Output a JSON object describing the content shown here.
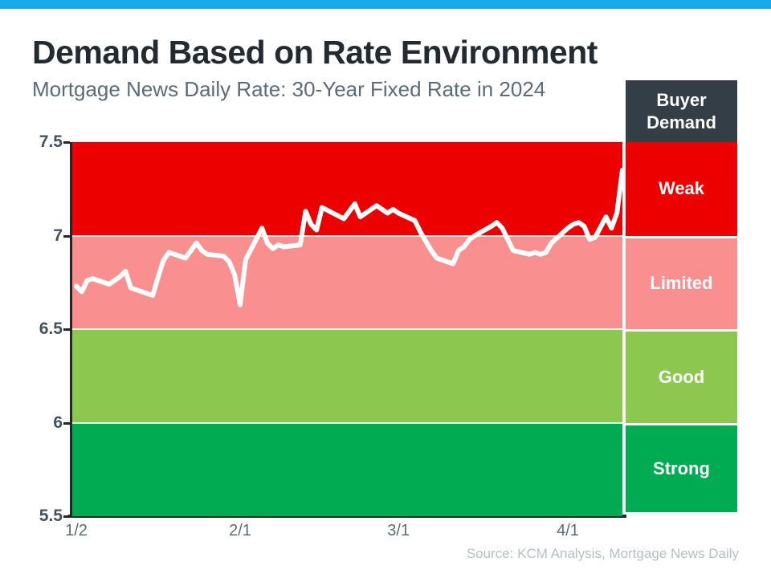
{
  "topbar": {
    "color": "#17a9e8"
  },
  "header": {
    "title": "Demand Based on Rate Environment",
    "subtitle": "Mortgage News Daily Rate: 30-Year Fixed Rate in 2024"
  },
  "legend": {
    "header": "Buyer Demand"
  },
  "footer": {
    "source_note": "Source: KCM Analysis, Mortgage News Daily"
  },
  "chart_data": {
    "type": "line",
    "title": "Demand Based on Rate Environment",
    "subtitle": "Mortgage News Daily Rate: 30-Year Fixed Rate in 2024",
    "xlabel": "",
    "ylabel": "",
    "ylim": [
      5.5,
      7.5
    ],
    "x_unit": "day-of-year-2024",
    "x_range_days": [
      2,
      102
    ],
    "grid": "white lines at band boundaries (7.0, 6.5, 6.0)",
    "legend_position": "right-column",
    "y_ticks": [
      {
        "label": "7.5",
        "value": 7.5
      },
      {
        "label": "7",
        "value": 7.0
      },
      {
        "label": "6.5",
        "value": 6.5
      },
      {
        "label": "6",
        "value": 6.0
      },
      {
        "label": "5.5",
        "value": 5.5
      }
    ],
    "x_ticks": [
      {
        "label": "1/2",
        "day": 2
      },
      {
        "label": "2/1",
        "day": 32
      },
      {
        "label": "3/1",
        "day": 61
      },
      {
        "label": "4/1",
        "day": 92
      }
    ],
    "bands": [
      {
        "label": "Weak",
        "min": 7.0,
        "max": 7.5,
        "color": "#ed0000"
      },
      {
        "label": "Limited",
        "min": 6.5,
        "max": 7.0,
        "color": "#f98f8e"
      },
      {
        "label": "Good",
        "min": 6.0,
        "max": 6.5,
        "color": "#8cc750"
      },
      {
        "label": "Strong",
        "min": 5.5,
        "max": 6.0,
        "color": "#00ab51"
      }
    ],
    "series": [
      {
        "name": "30-Year Fixed Rate",
        "color": "#ffffff",
        "points": [
          [
            2,
            6.73
          ],
          [
            3,
            6.7
          ],
          [
            4,
            6.76
          ],
          [
            5,
            6.77
          ],
          [
            8,
            6.74
          ],
          [
            9,
            6.76
          ],
          [
            10,
            6.78
          ],
          [
            11,
            6.81
          ],
          [
            12,
            6.72
          ],
          [
            16,
            6.68
          ],
          [
            17,
            6.78
          ],
          [
            18,
            6.87
          ],
          [
            19,
            6.91
          ],
          [
            22,
            6.88
          ],
          [
            23,
            6.92
          ],
          [
            24,
            6.96
          ],
          [
            25,
            6.92
          ],
          [
            26,
            6.9
          ],
          [
            29,
            6.89
          ],
          [
            30,
            6.86
          ],
          [
            31,
            6.79
          ],
          [
            32,
            6.63
          ],
          [
            33,
            6.87
          ],
          [
            36,
            7.04
          ],
          [
            37,
            6.96
          ],
          [
            38,
            6.93
          ],
          [
            39,
            6.95
          ],
          [
            40,
            6.94
          ],
          [
            43,
            6.95
          ],
          [
            44,
            7.13
          ],
          [
            45,
            7.06
          ],
          [
            46,
            7.03
          ],
          [
            47,
            7.15
          ],
          [
            51,
            7.09
          ],
          [
            52,
            7.13
          ],
          [
            53,
            7.17
          ],
          [
            54,
            7.1
          ],
          [
            57,
            7.16
          ],
          [
            58,
            7.14
          ],
          [
            59,
            7.12
          ],
          [
            60,
            7.14
          ],
          [
            61,
            7.12
          ],
          [
            64,
            7.08
          ],
          [
            65,
            7.02
          ],
          [
            66,
            6.97
          ],
          [
            67,
            6.92
          ],
          [
            68,
            6.88
          ],
          [
            71,
            6.85
          ],
          [
            72,
            6.92
          ],
          [
            73,
            6.94
          ],
          [
            74,
            6.98
          ],
          [
            75,
            7.0
          ],
          [
            78,
            7.05
          ],
          [
            79,
            7.07
          ],
          [
            80,
            7.04
          ],
          [
            81,
            6.98
          ],
          [
            82,
            6.92
          ],
          [
            85,
            6.9
          ],
          [
            86,
            6.91
          ],
          [
            87,
            6.9
          ],
          [
            88,
            6.91
          ],
          [
            89,
            6.96
          ],
          [
            92,
            7.04
          ],
          [
            93,
            7.06
          ],
          [
            94,
            7.07
          ],
          [
            95,
            7.05
          ],
          [
            96,
            6.98
          ],
          [
            97,
            6.99
          ],
          [
            99,
            7.1
          ],
          [
            100,
            7.04
          ],
          [
            101,
            7.12
          ],
          [
            102,
            7.35
          ]
        ]
      }
    ]
  }
}
